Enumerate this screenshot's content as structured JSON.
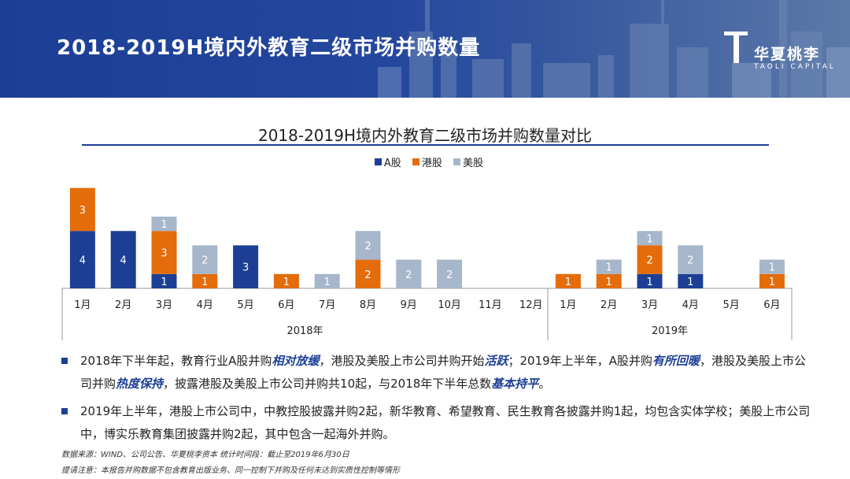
{
  "header": {
    "title": "2018-2019H境内外教育二级市场并购数量",
    "logo_text": "华夏桃李",
    "logo_sub": "TAOLI CAPITAL"
  },
  "colors": {
    "a_share": "#1c3f95",
    "hk": "#e46c0a",
    "us": "#a6b6cb",
    "brand": "#1c3f95"
  },
  "chart_data": {
    "type": "bar",
    "stacked": true,
    "title": "2018-2019H境内外教育二级市场并购数量对比",
    "legend_position": "top",
    "groups": [
      {
        "name": "2018年",
        "categories": [
          "1月",
          "2月",
          "3月",
          "4月",
          "5月",
          "6月",
          "7月",
          "8月",
          "9月",
          "10月",
          "11月",
          "12月"
        ]
      },
      {
        "name": "2019年",
        "categories": [
          "1月",
          "2月",
          "3月",
          "4月",
          "5月",
          "6月"
        ]
      }
    ],
    "series": [
      {
        "name": "A股",
        "color": "#1c3f95",
        "values": [
          4,
          4,
          1,
          0,
          3,
          0,
          0,
          0,
          0,
          0,
          0,
          0,
          0,
          0,
          1,
          1,
          0,
          0
        ]
      },
      {
        "name": "港股",
        "color": "#e46c0a",
        "values": [
          3,
          0,
          3,
          1,
          0,
          1,
          0,
          2,
          0,
          0,
          0,
          0,
          1,
          1,
          2,
          0,
          0,
          1
        ]
      },
      {
        "name": "美股",
        "color": "#a6b6cb",
        "values": [
          0,
          0,
          1,
          2,
          0,
          0,
          1,
          2,
          2,
          2,
          0,
          0,
          0,
          1,
          1,
          2,
          0,
          1
        ]
      }
    ],
    "ylim": [
      0,
      8
    ],
    "grid": false
  },
  "bullets": [
    {
      "parts": [
        {
          "t": "2018年下半年起，教育行业A股并购"
        },
        {
          "t": "相对放缓",
          "em": true
        },
        {
          "t": "，港股及美股上市公司并购开始"
        },
        {
          "t": "活跃",
          "em": true
        },
        {
          "t": "；2019年上半年，A股并购"
        },
        {
          "t": "有所回暖",
          "em": true
        },
        {
          "t": "，港股及美股上市公司并购"
        },
        {
          "t": "热度保持",
          "em": true
        },
        {
          "t": "，披露港股及美股上市公司并购共10起，与2018年下半年总数"
        },
        {
          "t": "基本持平",
          "em": true
        },
        {
          "t": "。"
        }
      ]
    },
    {
      "parts": [
        {
          "t": "2019年上半年，港股上市公司中，中教控股披露并购2起，新华教育、希望教育、民生教育各披露并购1起，均包含实体学校；美股上市公司中，博实乐教育集团披露并购2起，其中包含一起海外并购。"
        }
      ]
    }
  ],
  "notes": {
    "source": "数据来源：WIND、公司公告、华夏桃李资本     统计时间段：截止至2019年6月30日",
    "remark": "提请注意：本报告并购数据不包含教育出版业务、同一控制下并购及任何未达到实质性控制等情形"
  }
}
